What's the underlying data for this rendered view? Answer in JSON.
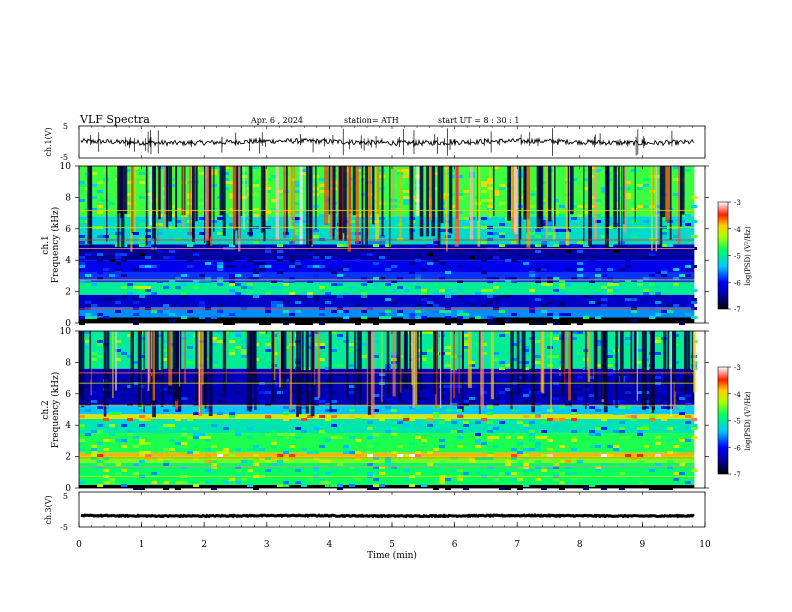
{
  "header": {
    "title": "VLF  Spectra",
    "date": "Apr. 6   , 2024",
    "station": "station= ATH",
    "start": "start  UT  =   8  : 30 : 1"
  },
  "chart_data": [
    {
      "type": "line",
      "name": "ch1-waveform",
      "ylabel": "ch.1(V)",
      "ylim": [
        -5,
        5
      ],
      "yticks": [
        "5",
        "-5"
      ],
      "xlim": [
        0,
        10
      ],
      "baseline": 0.0,
      "noise_amplitude": 0.8,
      "spike_count": 70
    },
    {
      "type": "heatmap",
      "name": "ch1-spectrogram",
      "ylabel": "ch.1\nFrequency  (kHz)",
      "yticks": [
        "0",
        "2",
        "4",
        "6",
        "8",
        "10"
      ],
      "ylim": [
        0,
        10
      ],
      "xlim": [
        0,
        9.83
      ],
      "colorbar": {
        "label": "log(PSD) (V²/Hz)",
        "ticks": [
          "-3",
          "-4",
          "-5",
          "-6",
          "-7"
        ],
        "range": [
          -7,
          -3
        ]
      },
      "bands_kHz": [
        {
          "from": 0.0,
          "to": 0.35,
          "level": -8.0
        },
        {
          "from": 0.35,
          "to": 1.0,
          "level": -5.8
        },
        {
          "from": 1.0,
          "to": 1.8,
          "level": -6.6
        },
        {
          "from": 1.8,
          "to": 2.6,
          "level": -5.2
        },
        {
          "from": 2.6,
          "to": 3.2,
          "level": -6.1
        },
        {
          "from": 3.2,
          "to": 4.0,
          "level": -6.4
        },
        {
          "from": 4.0,
          "to": 5.0,
          "level": -6.8
        },
        {
          "from": 5.0,
          "to": 6.8,
          "level": -5.4
        },
        {
          "from": 6.8,
          "to": 10.0,
          "level": -4.8
        }
      ]
    },
    {
      "type": "heatmap",
      "name": "ch2-spectrogram",
      "ylabel": "ch.2\nFrequency  (kHz)",
      "yticks": [
        "0",
        "2",
        "4",
        "6",
        "8",
        "10"
      ],
      "ylim": [
        0,
        10
      ],
      "xlim": [
        0,
        9.83
      ],
      "colorbar": {
        "label": "log(PSD) (V²/Hz)",
        "ticks": [
          "-3",
          "-4",
          "-5",
          "-6",
          "-7"
        ],
        "range": [
          -7,
          -3
        ]
      },
      "bands_kHz": [
        {
          "from": 0.0,
          "to": 0.2,
          "level": -8.0
        },
        {
          "from": 0.2,
          "to": 1.6,
          "level": -5.0
        },
        {
          "from": 1.6,
          "to": 2.0,
          "level": -4.6
        },
        {
          "from": 2.0,
          "to": 2.25,
          "level": -3.8
        },
        {
          "from": 2.25,
          "to": 3.5,
          "level": -4.9
        },
        {
          "from": 3.5,
          "to": 4.4,
          "level": -5.3
        },
        {
          "from": 4.4,
          "to": 4.7,
          "level": -4.1
        },
        {
          "from": 4.7,
          "to": 5.3,
          "level": -5.6
        },
        {
          "from": 5.3,
          "to": 7.6,
          "level": -6.7
        },
        {
          "from": 7.6,
          "to": 10.0,
          "level": -5.2
        }
      ]
    },
    {
      "type": "line",
      "name": "ch3-waveform",
      "ylabel": "ch.3(V)",
      "ylim": [
        -5,
        5
      ],
      "yticks": [
        "5",
        "-5"
      ],
      "xlim": [
        0,
        10
      ],
      "baseline": -1.8,
      "noise_amplitude": 0.15,
      "spike_count": 0
    }
  ],
  "xaxis": {
    "label": "Time  (min)",
    "ticks": [
      "0",
      "1",
      "2",
      "3",
      "4",
      "5",
      "6",
      "7",
      "8",
      "9",
      "10"
    ],
    "range": [
      0,
      10
    ]
  },
  "colors": {
    "colormap": [
      "#000080",
      "#0000ff",
      "#0080ff",
      "#00ffff",
      "#00ff80",
      "#80ff00",
      "#ffff00",
      "#ff8000",
      "#ff0000",
      "#ffffff"
    ]
  }
}
